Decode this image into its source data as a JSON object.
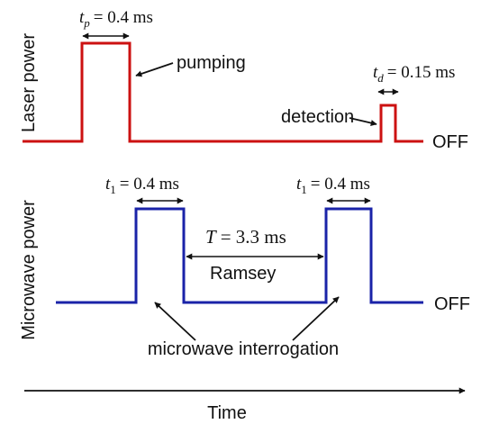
{
  "colors": {
    "laser": "#cc1111",
    "microwave": "#1a23a8",
    "ink": "#111111"
  },
  "laser": {
    "axis_label": "Laser power",
    "pump_duration": {
      "var": "t",
      "sub": "p",
      "value": "= 0.4 ms"
    },
    "pump_label": "pumping",
    "detect_duration": {
      "var": "t",
      "sub": "d",
      "value": "= 0.15 ms"
    },
    "detect_label": "detection",
    "off_label": "OFF"
  },
  "microwave": {
    "axis_label": "Microwave power",
    "pulse1_duration": {
      "var": "t",
      "sub": "1",
      "value": "= 0.4 ms"
    },
    "pulse2_duration": {
      "var": "t",
      "sub": "1",
      "value": "= 0.4 ms"
    },
    "gap_duration": {
      "var": "T",
      "value": "= 3.3 ms"
    },
    "gap_label": "Ramsey",
    "interrogation_label": "microwave interrogation",
    "off_label": "OFF"
  },
  "time_axis": {
    "label": "Time"
  }
}
